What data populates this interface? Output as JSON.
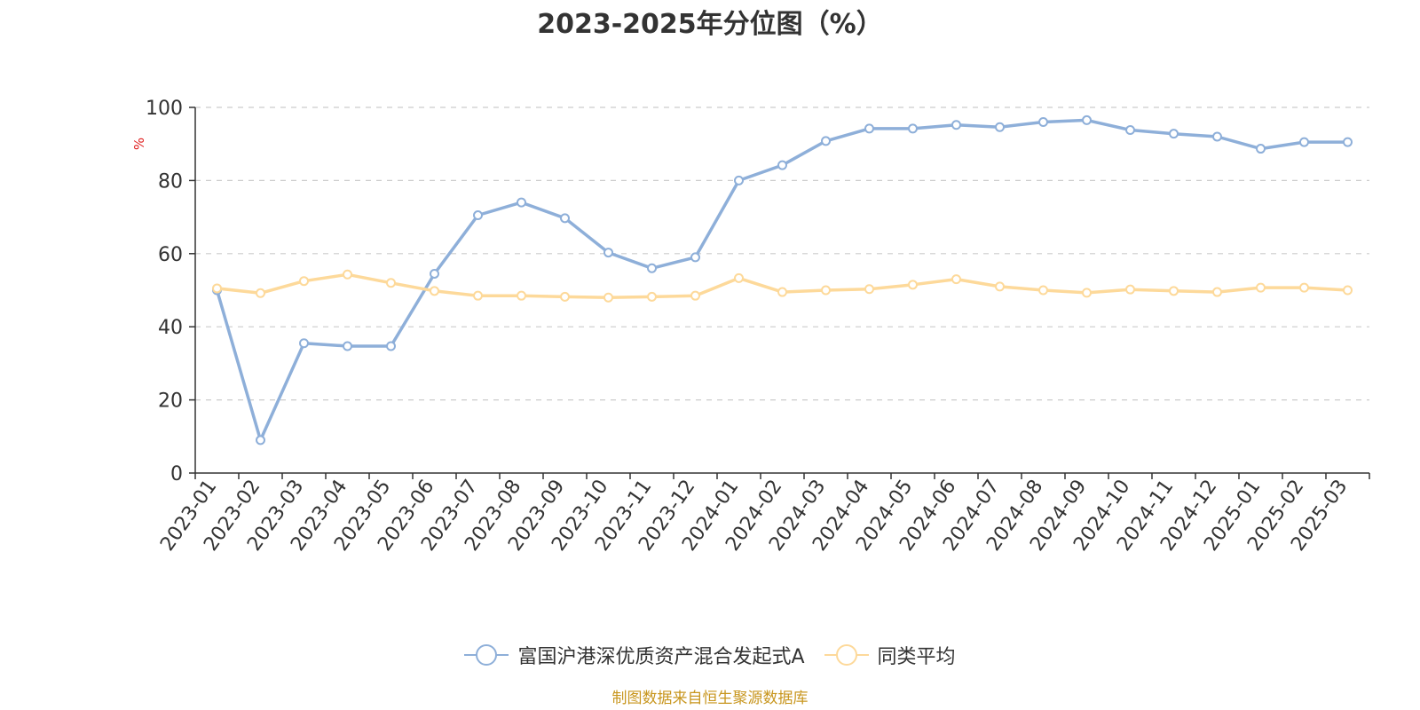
{
  "chart_data": {
    "type": "line",
    "title": "2023-2025年分位图（%）",
    "ylabel": "%",
    "xlabel": "",
    "ylim": [
      0,
      100
    ],
    "yticks": [
      0,
      20,
      40,
      60,
      80,
      100
    ],
    "grid": true,
    "legend_position": "bottom",
    "categories": [
      "2023-01",
      "2023-02",
      "2023-03",
      "2023-04",
      "2023-05",
      "2023-06",
      "2023-07",
      "2023-08",
      "2023-09",
      "2023-10",
      "2023-11",
      "2023-12",
      "2024-01",
      "2024-02",
      "2024-03",
      "2024-04",
      "2024-05",
      "2024-06",
      "2024-07",
      "2024-08",
      "2024-09",
      "2024-10",
      "2024-11",
      "2024-12",
      "2025-01",
      "2025-02",
      "2025-03"
    ],
    "series": [
      {
        "name": "富国沪港深优质资产混合发起式A",
        "color": "#8eafd9",
        "values": [
          50,
          9,
          35.5,
          34.7,
          34.7,
          54.5,
          70.5,
          74,
          69.7,
          60.3,
          56,
          59,
          80,
          84.2,
          90.8,
          94.2,
          94.2,
          95.2,
          94.6,
          96,
          96.5,
          93.8,
          92.8,
          92,
          88.7,
          90.5,
          90.5
        ]
      },
      {
        "name": "同类平均",
        "color": "#fdd99a",
        "values": [
          50.5,
          49.2,
          52.5,
          54.3,
          52,
          49.8,
          48.5,
          48.5,
          48.2,
          48,
          48.2,
          48.5,
          53.3,
          49.5,
          50,
          50.3,
          51.5,
          53,
          51,
          50,
          49.3,
          50.2,
          49.8,
          49.5,
          50.7,
          50.7,
          50
        ]
      }
    ]
  },
  "footer": {
    "source": "制图数据来自恒生聚源数据库"
  }
}
